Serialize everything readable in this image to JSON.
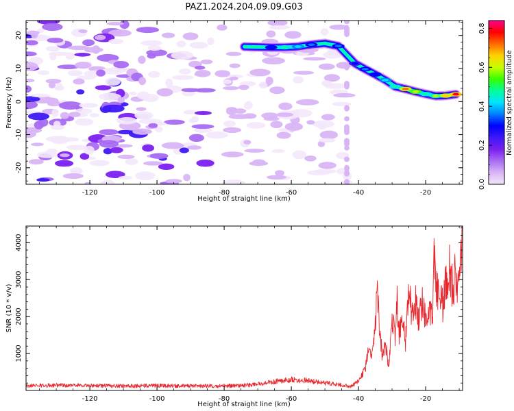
{
  "title": "PAZ1.2024.204.09.09.G03",
  "colors": {
    "snr_line": "#e8262c",
    "colormap": [
      "#f3e8fb",
      "#d9b5f6",
      "#a86cf2",
      "#7a1ff0",
      "#3d18f5",
      "#0000ff",
      "#0080ff",
      "#00e5ff",
      "#00ff9a",
      "#36ff00",
      "#c8ff00",
      "#ffd200",
      "#ff6a00",
      "#ff0000",
      "#ff0090"
    ]
  },
  "chart_data": [
    {
      "type": "heatmap",
      "xlabel": "Height of straight line (km)",
      "ylabel": "Frequency (Hz)",
      "xlim": [
        -139,
        -9
      ],
      "ylim": [
        -25,
        24.5
      ],
      "xticks": [
        -120,
        -100,
        -80,
        -60,
        -40,
        -20
      ],
      "yticks": [
        -20,
        -10,
        0,
        10,
        20
      ],
      "colorbar": {
        "label": "Normalized spectral amplitude",
        "range": [
          0,
          0.84
        ],
        "ticks": [
          0.0,
          0.2,
          0.4,
          0.6,
          0.8
        ]
      },
      "noise_region_x": [
        -139,
        -42
      ],
      "signal_ridge": [
        {
          "x": -74,
          "y": 16.6,
          "v": 0.12
        },
        {
          "x": -70,
          "y": 16.5,
          "v": 0.2
        },
        {
          "x": -66,
          "y": 16.4,
          "v": 0.32
        },
        {
          "x": -62,
          "y": 16.4,
          "v": 0.5
        },
        {
          "x": -58,
          "y": 16.6,
          "v": 0.42
        },
        {
          "x": -54,
          "y": 17.2,
          "v": 0.38
        },
        {
          "x": -50,
          "y": 17.6,
          "v": 0.26
        },
        {
          "x": -46,
          "y": 16.8,
          "v": 0.36
        },
        {
          "x": -41,
          "y": 11.5,
          "v": 0.3
        },
        {
          "x": -38,
          "y": 9.8,
          "v": 0.35
        },
        {
          "x": -35,
          "y": 8.2,
          "v": 0.32
        },
        {
          "x": -32,
          "y": 6.5,
          "v": 0.42
        },
        {
          "x": -29,
          "y": 4.5,
          "v": 0.48
        },
        {
          "x": -26,
          "y": 3.8,
          "v": 0.72
        },
        {
          "x": -23,
          "y": 3.0,
          "v": 0.62
        },
        {
          "x": -20,
          "y": 2.3,
          "v": 0.5
        },
        {
          "x": -17,
          "y": 1.7,
          "v": 0.58
        },
        {
          "x": -14,
          "y": 1.8,
          "v": 0.68
        },
        {
          "x": -11,
          "y": 2.2,
          "v": 0.78
        }
      ]
    },
    {
      "type": "line",
      "xlabel": "Height of straight line (km)",
      "ylabel": "SNR (10 * v/v)",
      "xlim": [
        -139,
        -9
      ],
      "ylim": [
        0,
        4450
      ],
      "xticks": [
        -120,
        -100,
        -80,
        -60,
        -40,
        -20
      ],
      "yticks": [
        1000,
        2000,
        3000,
        4000
      ],
      "series": [
        {
          "x": [
            -139,
            -130,
            -120,
            -110,
            -100,
            -90,
            -80,
            -72,
            -66,
            -60,
            -55,
            -50,
            -45,
            -42,
            -40,
            -38,
            -37,
            -36,
            -35,
            -34.5,
            -34,
            -33,
            -32,
            -31,
            -30,
            -29,
            -28.5,
            -28,
            -27,
            -26,
            -25,
            -24,
            -23,
            -22,
            -21,
            -20,
            -19,
            -18,
            -17.5,
            -17,
            -16,
            -15,
            -14,
            -13,
            -12,
            -11,
            -10,
            -9.5,
            -9
          ],
          "y": [
            130,
            140,
            130,
            120,
            130,
            120,
            120,
            150,
            230,
            300,
            260,
            200,
            150,
            120,
            250,
            600,
            1100,
            900,
            1800,
            2700,
            2100,
            900,
            1200,
            700,
            1800,
            1500,
            2600,
            1500,
            2000,
            1300,
            2800,
            2000,
            2500,
            1900,
            2300,
            2000,
            2200,
            1900,
            3700,
            3000,
            2500,
            2300,
            2900,
            3300,
            2800,
            3200,
            2700,
            3800,
            4350
          ]
        }
      ]
    }
  ]
}
